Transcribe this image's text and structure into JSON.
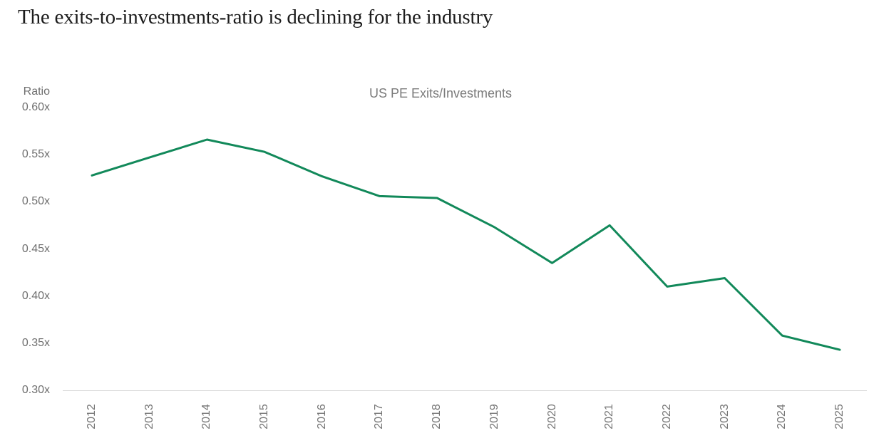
{
  "page_title": "The exits-to-investments-ratio is declining for the industry",
  "colors": {
    "line": "#12895A",
    "axis_line": "#D9D9D9",
    "tick_label": "#6F6F6F",
    "chart_title": "#7B7B7B",
    "page_title": "#1C1C1C",
    "background": "#FFFFFF"
  },
  "chart_data": {
    "type": "line",
    "title": "US PE Exits/Investments",
    "ylabel": "Ratio",
    "xlabel": "",
    "categories": [
      "2012",
      "2013",
      "2014",
      "2015",
      "2016",
      "2017",
      "2018",
      "2019",
      "2020",
      "2021",
      "2022",
      "2023",
      "2024",
      "2025"
    ],
    "series": [
      {
        "name": "US PE Exits/Investments",
        "values": [
          0.528,
          0.547,
          0.566,
          0.553,
          0.527,
          0.506,
          0.504,
          0.473,
          0.435,
          0.475,
          0.41,
          0.419,
          0.358,
          0.343
        ]
      }
    ],
    "ylim": [
      0.3,
      0.6
    ],
    "yticks": [
      {
        "label": "0.60x",
        "value": 0.6
      },
      {
        "label": "0.55x",
        "value": 0.55
      },
      {
        "label": "0.50x",
        "value": 0.5
      },
      {
        "label": "0.45x",
        "value": 0.45
      },
      {
        "label": "0.40x",
        "value": 0.4
      },
      {
        "label": "0.35x",
        "value": 0.35
      },
      {
        "label": "0.30x",
        "value": 0.3
      }
    ],
    "grid": false,
    "legend": false,
    "x_tick_rotation": -90,
    "line_color": "#12895A"
  }
}
